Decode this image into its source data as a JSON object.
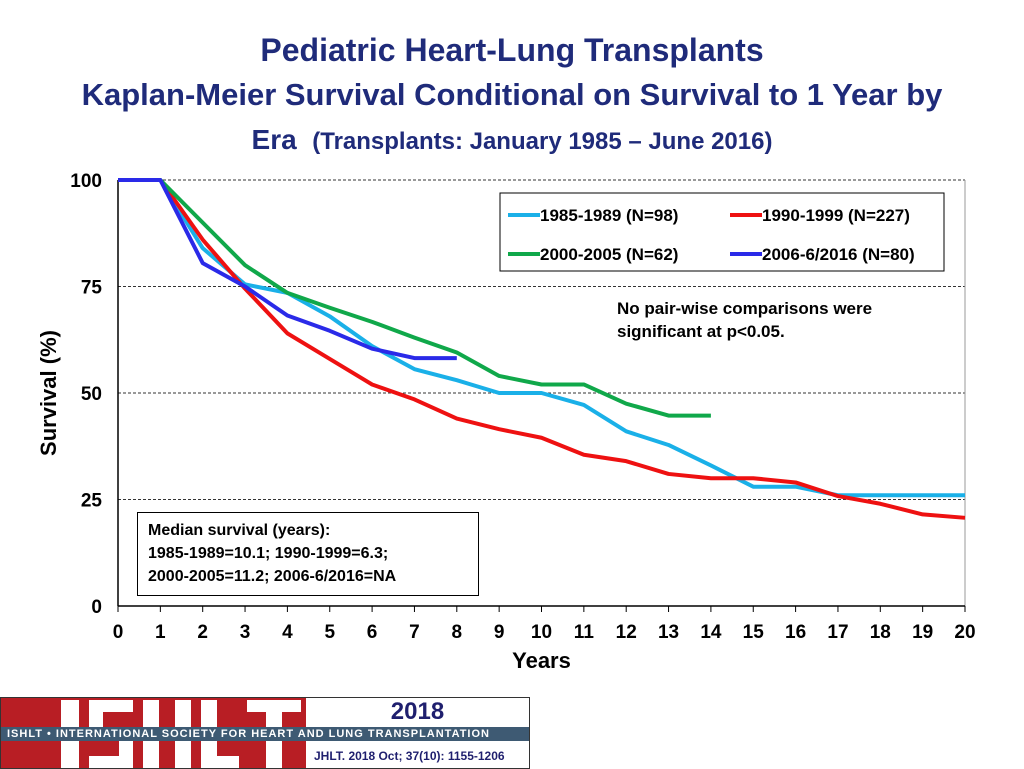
{
  "title": "Pediatric Heart-Lung Transplants",
  "subtitle_line1": "Kaplan-Meier Survival Conditional on Survival to 1 Year by",
  "subtitle_era": "Era",
  "subtitle_range": "(Transplants: January 1985 – June 2016)",
  "note": "No pair-wise comparisons were significant at p<0.05.",
  "median": {
    "line1": "Median survival (years):",
    "line2": "1985-1989=10.1; 1990-1999=6.3;",
    "line3": "2000-2005=11.2; 2006-6/2016=NA"
  },
  "footer": {
    "logo_text": "ISHLT",
    "band_text": "ISHLT • INTERNATIONAL SOCIETY FOR HEART AND LUNG TRANSPLANTATION",
    "year": "2018",
    "citation": "JHLT. 2018 Oct; 37(10): 1155-1206"
  },
  "chart_data": {
    "type": "line",
    "xlabel": "Years",
    "ylabel": "Survival (%)",
    "xlim": [
      0,
      20
    ],
    "ylim": [
      0,
      100
    ],
    "xticks": [
      0,
      1,
      2,
      3,
      4,
      5,
      6,
      7,
      8,
      9,
      10,
      11,
      12,
      13,
      14,
      15,
      16,
      17,
      18,
      19,
      20
    ],
    "yticks": [
      0,
      25,
      50,
      75,
      100
    ],
    "grid": "horizontal dashed",
    "legend_placement": "top-right",
    "series": [
      {
        "name": "1985-1989 (N=98)",
        "color": "#1ab0e8",
        "x": [
          0,
          1,
          2,
          3,
          4,
          5,
          6,
          7,
          8,
          9,
          10,
          11,
          12,
          13,
          14,
          15,
          16,
          17,
          18,
          19,
          20
        ],
        "y": [
          100,
          100,
          84,
          75.5,
          73.5,
          68,
          61,
          55.6,
          53,
          50,
          50,
          47.2,
          41,
          37.8,
          33,
          28,
          28,
          26,
          26,
          26,
          26
        ]
      },
      {
        "name": "1990-1999 (N=227)",
        "color": "#ee1111",
        "x": [
          0,
          1,
          2,
          3,
          4,
          5,
          6,
          7,
          8,
          9,
          10,
          11,
          12,
          13,
          14,
          15,
          16,
          17,
          18,
          19,
          20
        ],
        "y": [
          100,
          100,
          86,
          74.5,
          64,
          58,
          52,
          48.5,
          44,
          41.5,
          39.5,
          35.5,
          34,
          31,
          30,
          30,
          29,
          25.8,
          24,
          21.5,
          20.7
        ]
      },
      {
        "name": "2000-2005 (N=62)",
        "color": "#10a84a",
        "x": [
          0,
          1,
          2,
          3,
          4,
          5,
          6,
          7,
          8,
          9,
          10,
          11,
          12,
          13,
          14
        ],
        "y": [
          100,
          100,
          90,
          80,
          73.5,
          70,
          66.7,
          63,
          59.5,
          54,
          52,
          52,
          47.5,
          44.7,
          44.7
        ]
      },
      {
        "name": "2006-6/2016 (N=80)",
        "color": "#2a2ae8",
        "x": [
          0,
          1,
          2,
          3,
          4,
          5,
          6,
          7,
          8
        ],
        "y": [
          100,
          100,
          80.5,
          75,
          68.2,
          64.6,
          60.4,
          58.2,
          58.2
        ]
      }
    ]
  }
}
